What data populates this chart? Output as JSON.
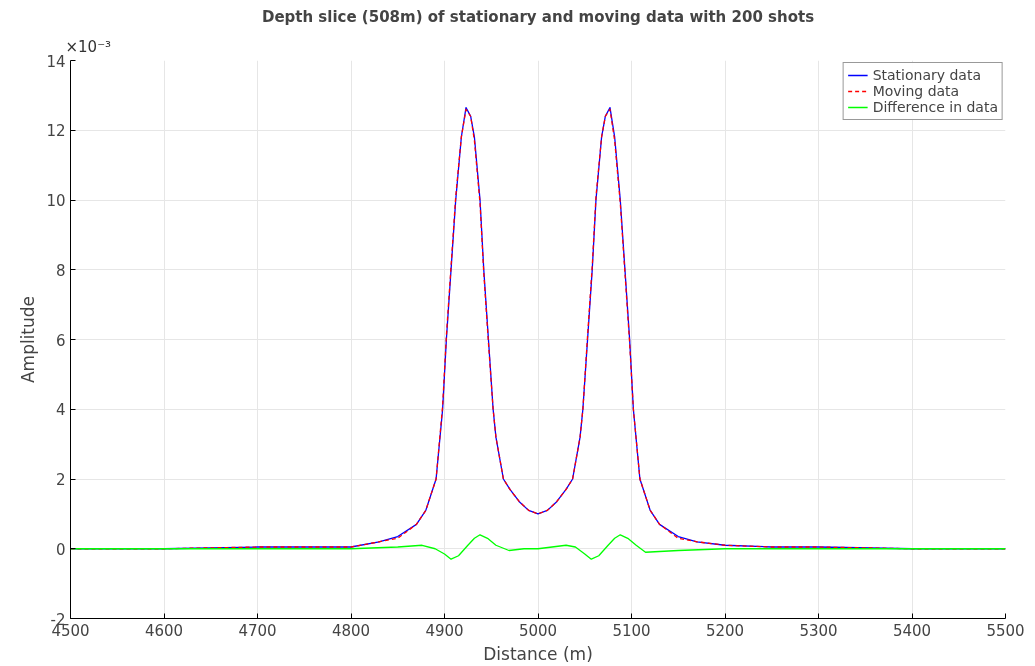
{
  "chart_data": {
    "type": "line",
    "title": "Depth slice (508m) of stationary and moving data with 200 shots",
    "xlabel": "Distance (m)",
    "ylabel": "Amplitude",
    "annotations": [
      "×10⁻³"
    ],
    "xlim": [
      4500,
      5500
    ],
    "xticks": [
      4500,
      4600,
      4700,
      4800,
      4900,
      5000,
      5100,
      5200,
      5300,
      5400,
      5500
    ],
    "ylim": [
      -2,
      14
    ],
    "yticks": [
      -2,
      0,
      2,
      4,
      6,
      8,
      10,
      12,
      14
    ],
    "grid": true,
    "legend": "top right",
    "x": [
      4500,
      4600,
      4700,
      4750,
      4800,
      4830,
      4850,
      4870,
      4880,
      4891,
      4898,
      4902,
      4907,
      4912,
      4918,
      4923,
      4928,
      4932,
      4938,
      4942,
      4947,
      4952,
      4955,
      4963,
      4970,
      4980,
      4990,
      5000,
      5010,
      5020,
      5030,
      5037,
      5045,
      5048,
      5053,
      5058,
      5062,
      5068,
      5072,
      5077,
      5082,
      5088,
      5093,
      5098,
      5102,
      5109,
      5120,
      5130,
      5150,
      5170,
      5200,
      5250,
      5300,
      5400,
      5500
    ],
    "series": [
      {
        "name": "Stationary data",
        "color": "#0000ff",
        "line_style": "solid",
        "values": [
          0.0,
          0.0,
          0.05,
          0.05,
          0.05,
          0.2,
          0.35,
          0.7,
          1.1,
          2.0,
          4.0,
          6.0,
          8.0,
          10.0,
          11.8,
          12.65,
          12.4,
          11.8,
          10.0,
          8.0,
          6.0,
          4.0,
          3.2,
          2.0,
          1.7,
          1.35,
          1.1,
          1.0,
          1.1,
          1.35,
          1.7,
          2.0,
          3.2,
          4.0,
          6.0,
          8.0,
          10.0,
          11.8,
          12.4,
          12.65,
          11.8,
          10.0,
          8.0,
          6.0,
          4.0,
          2.0,
          1.1,
          0.7,
          0.35,
          0.2,
          0.1,
          0.05,
          0.05,
          0.0,
          0.0
        ]
      },
      {
        "name": "Moving data",
        "color": "#ff0000",
        "line_style": "dashed",
        "values": [
          0.0,
          0.0,
          0.05,
          0.05,
          0.05,
          0.2,
          0.3,
          0.7,
          1.1,
          2.0,
          4.1,
          6.1,
          8.1,
          10.1,
          11.8,
          12.6,
          12.4,
          11.7,
          9.9,
          7.9,
          5.9,
          4.0,
          3.2,
          2.0,
          1.7,
          1.35,
          1.1,
          1.0,
          1.1,
          1.35,
          1.7,
          2.0,
          3.2,
          4.0,
          6.1,
          8.1,
          10.1,
          11.8,
          12.4,
          12.6,
          11.7,
          9.9,
          7.9,
          5.9,
          4.0,
          2.0,
          1.1,
          0.7,
          0.3,
          0.2,
          0.1,
          0.05,
          0.05,
          0.0,
          0.0
        ]
      },
      {
        "name": "Difference in data",
        "color": "#00ff00",
        "line_style": "solid",
        "x": [
          4500,
          4600,
          4700,
          4800,
          4850,
          4876,
          4890,
          4900,
          4907,
          4915,
          4925,
          4932,
          4938,
          4946,
          4955,
          4969,
          4985,
          5000,
          5015,
          5030,
          5040,
          5050,
          5057,
          5065,
          5075,
          5082,
          5088,
          5096,
          5105,
          5115,
          5150,
          5200,
          5300,
          5400,
          5500
        ],
        "values": [
          0.0,
          0.0,
          0.0,
          0.0,
          0.05,
          0.1,
          0.0,
          -0.15,
          -0.3,
          -0.2,
          0.1,
          0.3,
          0.4,
          0.3,
          0.1,
          -0.05,
          0.0,
          0.0,
          0.05,
          0.1,
          0.05,
          -0.15,
          -0.3,
          -0.2,
          0.1,
          0.3,
          0.4,
          0.3,
          0.1,
          -0.1,
          -0.05,
          0.0,
          0.0,
          0.0,
          0.0
        ]
      }
    ]
  }
}
